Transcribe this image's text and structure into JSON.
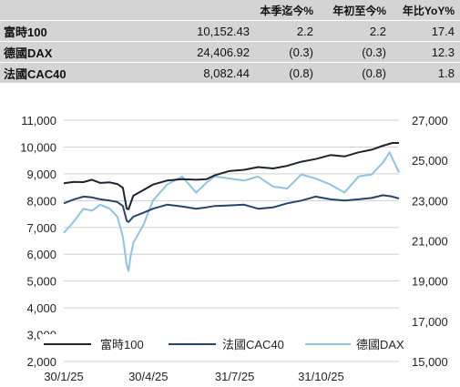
{
  "summary_table": {
    "headers": [
      "",
      "",
      "本季迄今%",
      "年初至今%",
      "年比YoY%"
    ],
    "rows": [
      {
        "name": "富時100",
        "value": "10,152.43",
        "qtd": "2.2",
        "ytd": "2.2",
        "yoy": "17.4"
      },
      {
        "name": "德國DAX",
        "value": "24,406.92",
        "qtd": "(0.3)",
        "ytd": "(0.3)",
        "yoy": "12.3"
      },
      {
        "name": "法國CAC40",
        "value": "8,082.44",
        "qtd": "(0.8)",
        "ytd": "(0.8)",
        "yoy": "1.8"
      }
    ]
  },
  "chart_data": {
    "type": "line",
    "x_tick_labels": [
      "30/1/25",
      "30/4/25",
      "31/7/25",
      "31/10/25"
    ],
    "x_ticks": [
      "2025-01-30",
      "2025-04-30",
      "2025-07-31",
      "2025-10-31"
    ],
    "x_range": [
      "2025-01-30",
      "2026-01-22"
    ],
    "y_left": {
      "min": 2000,
      "max": 11000,
      "step": 1000,
      "tick_labels": [
        "2,000",
        "3,000",
        "4,000",
        "5,000",
        "6,000",
        "7,000",
        "8,000",
        "9,000",
        "10,000",
        "11,000"
      ]
    },
    "y_right": {
      "min": 15000,
      "max": 27000,
      "step": 2000,
      "tick_labels": [
        "15,000",
        "17,000",
        "19,000",
        "21,000",
        "23,000",
        "25,000",
        "27,000"
      ]
    },
    "grid": "horizontal",
    "legend_position": "bottom-inside",
    "series": [
      {
        "name": "富時100",
        "axis": "left",
        "color": "#1c2430",
        "points": [
          [
            "2025-01-30",
            8650
          ],
          [
            "2025-02-10",
            8700
          ],
          [
            "2025-02-20",
            8690
          ],
          [
            "2025-03-01",
            8780
          ],
          [
            "2025-03-10",
            8660
          ],
          [
            "2025-03-20",
            8680
          ],
          [
            "2025-03-28",
            8620
          ],
          [
            "2025-04-03",
            8480
          ],
          [
            "2025-04-07",
            7700
          ],
          [
            "2025-04-09",
            7680
          ],
          [
            "2025-04-14",
            8180
          ],
          [
            "2025-04-25",
            8400
          ],
          [
            "2025-05-05",
            8600
          ],
          [
            "2025-05-20",
            8750
          ],
          [
            "2025-06-05",
            8800
          ],
          [
            "2025-06-20",
            8780
          ],
          [
            "2025-07-01",
            8800
          ],
          [
            "2025-07-10",
            8950
          ],
          [
            "2025-07-25",
            9100
          ],
          [
            "2025-08-10",
            9150
          ],
          [
            "2025-08-25",
            9250
          ],
          [
            "2025-09-10",
            9200
          ],
          [
            "2025-09-25",
            9300
          ],
          [
            "2025-10-10",
            9450
          ],
          [
            "2025-10-25",
            9550
          ],
          [
            "2025-11-10",
            9700
          ],
          [
            "2025-11-25",
            9650
          ],
          [
            "2025-12-10",
            9800
          ],
          [
            "2025-12-24",
            9900
          ],
          [
            "2026-01-05",
            10050
          ],
          [
            "2026-01-15",
            10150
          ],
          [
            "2026-01-22",
            10150
          ]
        ]
      },
      {
        "name": "法國CAC40",
        "axis": "left",
        "color": "#24456a",
        "points": [
          [
            "2025-01-30",
            7900
          ],
          [
            "2025-02-10",
            8050
          ],
          [
            "2025-02-20",
            8150
          ],
          [
            "2025-03-01",
            8120
          ],
          [
            "2025-03-10",
            8050
          ],
          [
            "2025-03-20",
            8000
          ],
          [
            "2025-03-28",
            7950
          ],
          [
            "2025-04-03",
            7800
          ],
          [
            "2025-04-07",
            7250
          ],
          [
            "2025-04-09",
            7200
          ],
          [
            "2025-04-14",
            7400
          ],
          [
            "2025-04-25",
            7550
          ],
          [
            "2025-05-05",
            7700
          ],
          [
            "2025-05-20",
            7850
          ],
          [
            "2025-06-05",
            7780
          ],
          [
            "2025-06-20",
            7700
          ],
          [
            "2025-07-01",
            7750
          ],
          [
            "2025-07-10",
            7800
          ],
          [
            "2025-07-25",
            7820
          ],
          [
            "2025-08-10",
            7850
          ],
          [
            "2025-08-25",
            7700
          ],
          [
            "2025-09-10",
            7750
          ],
          [
            "2025-09-25",
            7900
          ],
          [
            "2025-10-10",
            8000
          ],
          [
            "2025-10-25",
            8150
          ],
          [
            "2025-11-10",
            8050
          ],
          [
            "2025-11-25",
            8000
          ],
          [
            "2025-12-10",
            8050
          ],
          [
            "2025-12-24",
            8100
          ],
          [
            "2026-01-05",
            8200
          ],
          [
            "2026-01-15",
            8150
          ],
          [
            "2026-01-22",
            8080
          ]
        ]
      },
      {
        "name": "德國DAX",
        "axis": "right",
        "color": "#8fc4e0",
        "points": [
          [
            "2025-01-30",
            21400
          ],
          [
            "2025-02-05",
            21700
          ],
          [
            "2025-02-12",
            22100
          ],
          [
            "2025-02-20",
            22600
          ],
          [
            "2025-03-01",
            22500
          ],
          [
            "2025-03-10",
            22800
          ],
          [
            "2025-03-20",
            22600
          ],
          [
            "2025-03-28",
            22200
          ],
          [
            "2025-04-03",
            21200
          ],
          [
            "2025-04-07",
            19800
          ],
          [
            "2025-04-09",
            19500
          ],
          [
            "2025-04-11",
            20200
          ],
          [
            "2025-04-14",
            20900
          ],
          [
            "2025-04-25",
            21800
          ],
          [
            "2025-05-05",
            23000
          ],
          [
            "2025-05-20",
            23800
          ],
          [
            "2025-06-05",
            24200
          ],
          [
            "2025-06-20",
            23400
          ],
          [
            "2025-07-01",
            23900
          ],
          [
            "2025-07-10",
            24200
          ],
          [
            "2025-07-25",
            24100
          ],
          [
            "2025-08-10",
            24000
          ],
          [
            "2025-08-25",
            24200
          ],
          [
            "2025-09-10",
            23700
          ],
          [
            "2025-09-25",
            23600
          ],
          [
            "2025-10-10",
            24300
          ],
          [
            "2025-10-25",
            24100
          ],
          [
            "2025-11-10",
            23800
          ],
          [
            "2025-11-25",
            23400
          ],
          [
            "2025-12-10",
            24200
          ],
          [
            "2025-12-24",
            24300
          ],
          [
            "2026-01-05",
            24900
          ],
          [
            "2026-01-12",
            25400
          ],
          [
            "2026-01-18",
            24800
          ],
          [
            "2026-01-22",
            24400
          ]
        ]
      }
    ]
  }
}
